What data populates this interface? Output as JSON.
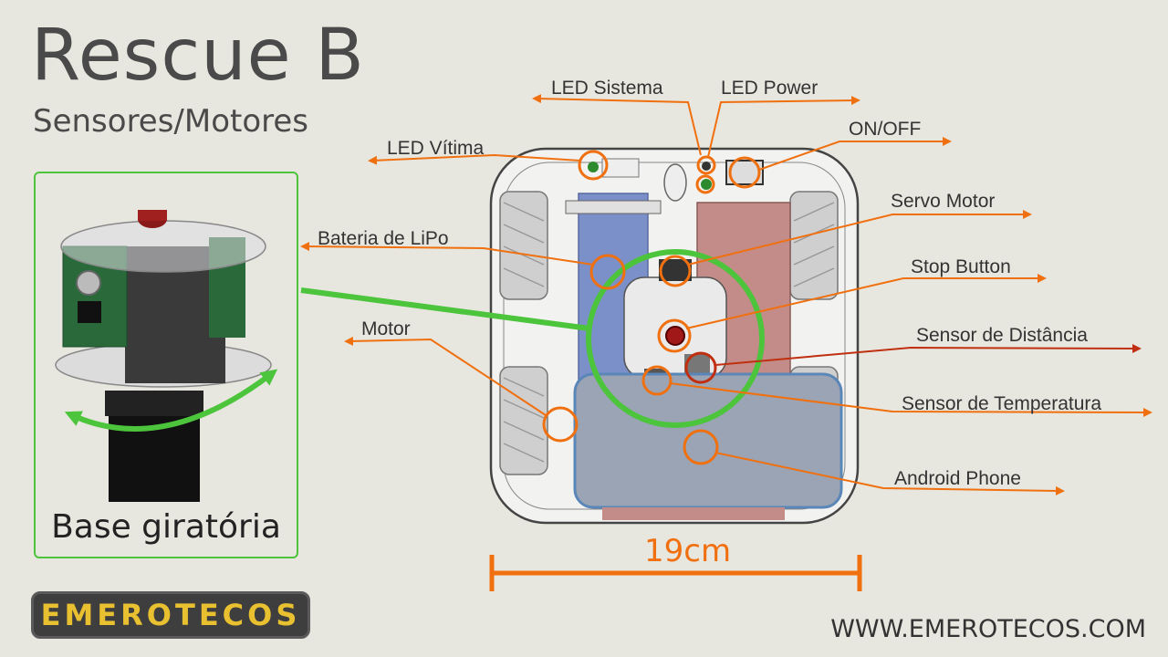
{
  "title": "Rescue B",
  "subtitle": "Sensores/Motores",
  "inset": {
    "caption": "Base giratória"
  },
  "labels": {
    "led_sistema": "LED Sistema",
    "led_power": "LED Power",
    "on_off": "ON/OFF",
    "led_vitima": "LED Vítima",
    "servo_motor": "Servo Motor",
    "bateria": "Bateria de LiPo",
    "stop_button": "Stop Button",
    "motor": "Motor",
    "sensor_distancia": "Sensor de Distância",
    "sensor_temperatura": "Sensor de Temperatura",
    "android_phone": "Android Phone"
  },
  "dimension": "19cm",
  "logo": "EMEROTECOS",
  "website": "WWW.EMEROTECOS.COM",
  "colors": {
    "accent": "#f07010",
    "highlight": "#4cc43c",
    "dark_red": "#c03010"
  }
}
